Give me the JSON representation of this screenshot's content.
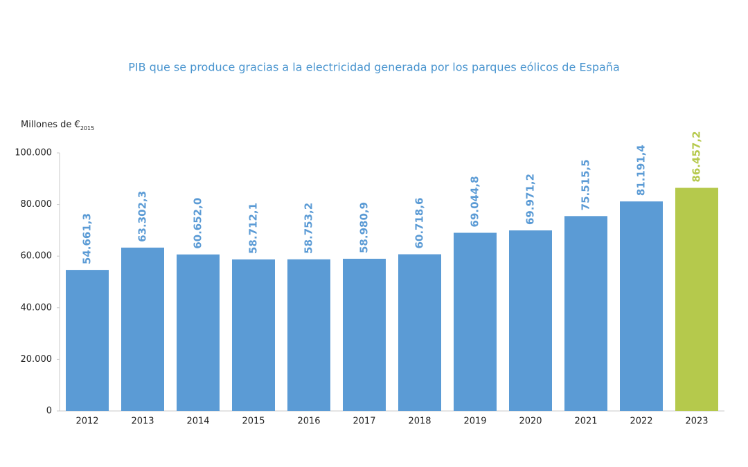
{
  "chart_data": {
    "type": "bar",
    "title": "PIB que se produce gracias a la electricidad generada por los parques eólicos de España",
    "y_label": "Millones de €",
    "y_label_subscript": "2015",
    "categories": [
      "2012",
      "2013",
      "2014",
      "2015",
      "2016",
      "2017",
      "2018",
      "2019",
      "2020",
      "2021",
      "2022",
      "2023"
    ],
    "values": [
      54661.3,
      63302.3,
      60652.0,
      58712.1,
      58753.2,
      58980.9,
      60718.6,
      69044.8,
      69971.2,
      75515.5,
      81191.4,
      86457.2
    ],
    "value_labels": [
      "54.661,3",
      "63.302,3",
      "60.652,0",
      "58.712,1",
      "58.753,2",
      "58.980,9",
      "60.718,6",
      "69.044,8",
      "69.971,2",
      "75.515,5",
      "81.191,4",
      "86.457,2"
    ],
    "colors": [
      "#5b9bd5",
      "#5b9bd5",
      "#5b9bd5",
      "#5b9bd5",
      "#5b9bd5",
      "#5b9bd5",
      "#5b9bd5",
      "#5b9bd5",
      "#5b9bd5",
      "#5b9bd5",
      "#5b9bd5",
      "#b5c94c"
    ],
    "ylim": [
      0,
      100000
    ],
    "yticks": [
      0,
      {
        "value": 20000,
        "label": "20.000"
      },
      {
        "value": 40000,
        "label": "40.000"
      },
      {
        "value": 60000,
        "label": "60.000"
      },
      {
        "value": 80000,
        "label": "80.000"
      },
      {
        "value": 100000,
        "label": "100.000"
      }
    ],
    "grid": false
  }
}
